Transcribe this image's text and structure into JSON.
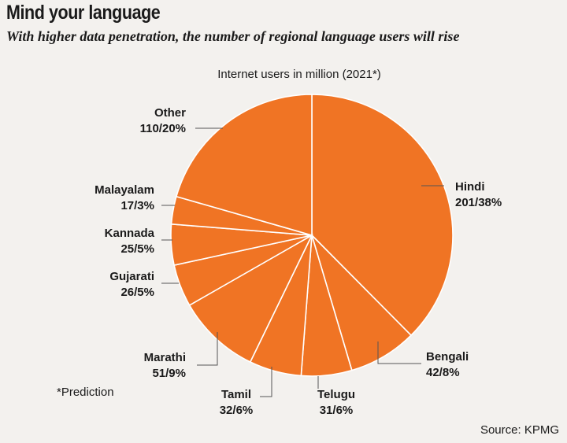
{
  "title": "Mind your language",
  "subtitle": "With higher data penetration, the number of regional language users will rise",
  "note": "*Prediction",
  "source": "Source: KPMG",
  "colors": {
    "slice": "#f07424",
    "separator": "#ffffff",
    "leader": "#555555",
    "background": "#f3f1ee"
  },
  "chart_data": {
    "type": "pie",
    "title": "Internet users in million (2021*)",
    "slices": [
      {
        "name": "Hindi",
        "value": 201,
        "percent": 38,
        "label": "201/38%"
      },
      {
        "name": "Bengali",
        "value": 42,
        "percent": 8,
        "label": "42/8%"
      },
      {
        "name": "Telugu",
        "value": 31,
        "percent": 6,
        "label": "31/6%"
      },
      {
        "name": "Tamil",
        "value": 32,
        "percent": 6,
        "label": "32/6%"
      },
      {
        "name": "Marathi",
        "value": 51,
        "percent": 9,
        "label": "51/9%"
      },
      {
        "name": "Gujarati",
        "value": 26,
        "percent": 5,
        "label": "26/5%"
      },
      {
        "name": "Kannada",
        "value": 25,
        "percent": 5,
        "label": "25/5%"
      },
      {
        "name": "Malayalam",
        "value": 17,
        "percent": 3,
        "label": "17/3%"
      },
      {
        "name": "Other",
        "value": 110,
        "percent": 20,
        "label": "110/20%"
      }
    ]
  }
}
